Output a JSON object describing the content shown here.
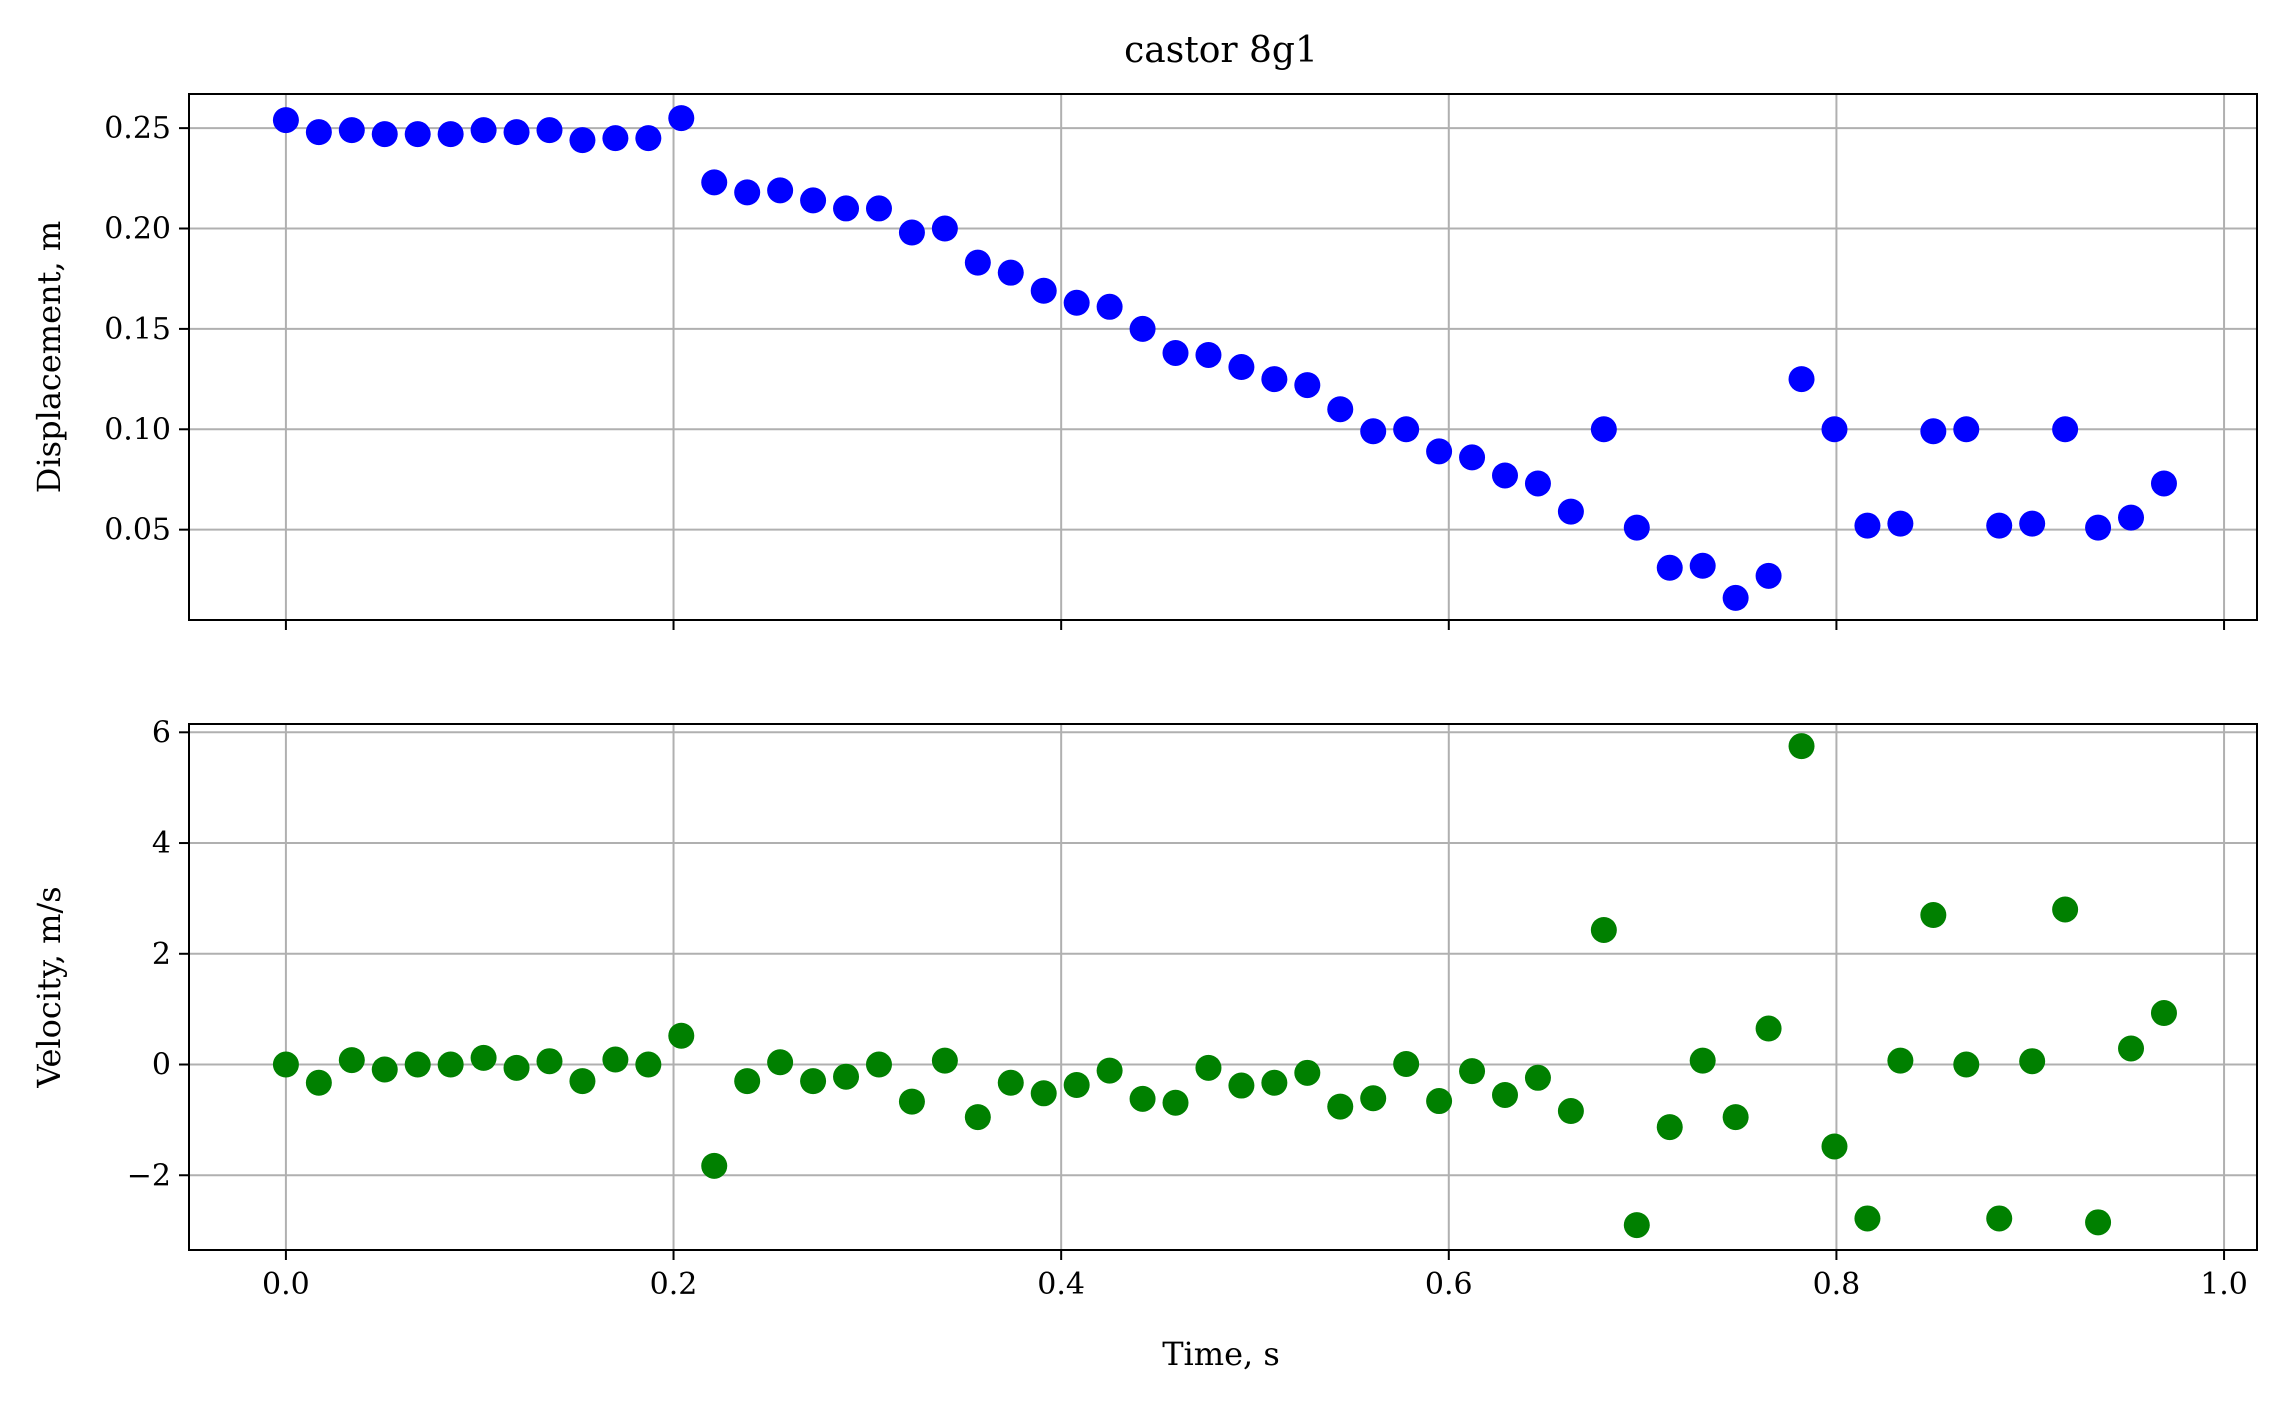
{
  "chart_data": {
    "type": "scatter",
    "title": "castor 8g1",
    "xlabel": "Time, s",
    "xlim": [
      -0.05,
      1.017
    ],
    "xticks": [
      "0.0",
      "0.2",
      "0.4",
      "0.6",
      "0.8",
      "1.0"
    ],
    "xtick_values": [
      0.0,
      0.2,
      0.4,
      0.6,
      0.8,
      1.0
    ],
    "grid": true,
    "x": [
      0.0,
      0.017,
      0.034,
      0.051,
      0.068,
      0.085,
      0.102,
      0.119,
      0.136,
      0.153,
      0.17,
      0.187,
      0.204,
      0.221,
      0.238,
      0.255,
      0.272,
      0.289,
      0.306,
      0.323,
      0.34,
      0.357,
      0.374,
      0.391,
      0.408,
      0.425,
      0.442,
      0.459,
      0.476,
      0.493,
      0.51,
      0.527,
      0.544,
      0.561,
      0.578,
      0.595,
      0.612,
      0.629,
      0.646,
      0.663,
      0.68,
      0.697,
      0.714,
      0.731,
      0.748,
      0.765,
      0.782,
      0.799,
      0.816,
      0.833,
      0.85,
      0.867,
      0.884,
      0.901,
      0.918,
      0.935,
      0.952,
      0.969
    ],
    "subplots": [
      {
        "ylabel": "Displacement, m",
        "color": "#0000ff",
        "ylim": [
          0.005,
          0.267
        ],
        "yticks": [
          "0.05",
          "0.10",
          "0.15",
          "0.20",
          "0.25"
        ],
        "ytick_values": [
          0.05,
          0.1,
          0.15,
          0.2,
          0.25
        ],
        "show_xticklabels": false,
        "values": [
          0.254,
          0.248,
          0.249,
          0.247,
          0.247,
          0.247,
          0.249,
          0.248,
          0.249,
          0.244,
          0.245,
          0.245,
          0.255,
          0.223,
          0.218,
          0.219,
          0.214,
          0.21,
          0.21,
          0.198,
          0.2,
          0.183,
          0.178,
          0.169,
          0.163,
          0.161,
          0.15,
          0.138,
          0.137,
          0.131,
          0.125,
          0.122,
          0.11,
          0.099,
          0.1,
          0.089,
          0.086,
          0.077,
          0.073,
          0.059,
          0.1,
          0.051,
          0.031,
          0.032,
          0.016,
          0.027,
          0.125,
          0.1,
          0.052,
          0.053,
          0.099,
          0.1,
          0.052,
          0.053,
          0.1,
          0.051,
          0.056,
          0.073
        ]
      },
      {
        "ylabel": "Velocity, m/s",
        "color": "#008000",
        "ylim": [
          -3.35,
          6.15
        ],
        "yticks": [
          "−2",
          "0",
          "2",
          "4",
          "6"
        ],
        "ytick_values": [
          -2,
          0,
          2,
          4,
          6
        ],
        "show_xticklabels": true,
        "values": [
          0.0,
          -0.33,
          0.08,
          -0.09,
          0.0,
          0.0,
          0.12,
          -0.06,
          0.06,
          -0.3,
          0.09,
          0.0,
          0.52,
          -1.83,
          -0.3,
          0.04,
          -0.3,
          -0.22,
          0.0,
          -0.67,
          0.07,
          -0.95,
          -0.33,
          -0.52,
          -0.37,
          -0.11,
          -0.62,
          -0.69,
          -0.06,
          -0.38,
          -0.33,
          -0.15,
          -0.76,
          -0.61,
          0.01,
          -0.66,
          -0.12,
          -0.55,
          -0.24,
          -0.84,
          2.43,
          -2.9,
          -1.13,
          0.07,
          -0.95,
          0.65,
          5.75,
          -1.48,
          -2.78,
          0.07,
          2.7,
          0.0,
          -2.78,
          0.06,
          2.8,
          -2.85,
          0.29,
          0.93
        ]
      }
    ]
  }
}
